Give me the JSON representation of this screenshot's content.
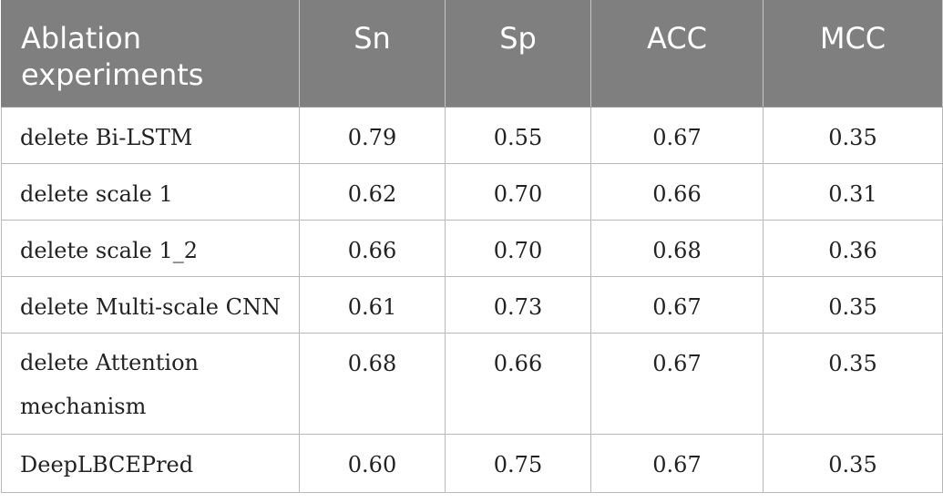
{
  "table": {
    "headers": [
      "Ablation experiments",
      "Sn",
      "Sp",
      "ACC",
      "MCC"
    ],
    "rows": [
      {
        "name": "delete Bi-LSTM",
        "Sn": "0.79",
        "Sp": "0.55",
        "ACC": "0.67",
        "MCC": "0.35"
      },
      {
        "name": "delete scale 1",
        "Sn": "0.62",
        "Sp": "0.70",
        "ACC": "0.66",
        "MCC": "0.31"
      },
      {
        "name": "delete scale 1_2",
        "Sn": "0.66",
        "Sp": "0.70",
        "ACC": "0.68",
        "MCC": "0.36"
      },
      {
        "name": "delete Multi-scale CNN",
        "Sn": "0.61",
        "Sp": "0.73",
        "ACC": "0.67",
        "MCC": "0.35"
      },
      {
        "name": "delete Attention mechanism",
        "Sn": "0.68",
        "Sp": "0.66",
        "ACC": "0.67",
        "MCC": "0.35"
      },
      {
        "name": "DeepLBCEPred",
        "Sn": "0.60",
        "Sp": "0.75",
        "ACC": "0.67",
        "MCC": "0.35"
      }
    ]
  },
  "colors": {
    "header_bg": "#7f7f7f",
    "header_text": "#ffffff",
    "body_text": "#222222",
    "grid": "#b9b9b9"
  }
}
